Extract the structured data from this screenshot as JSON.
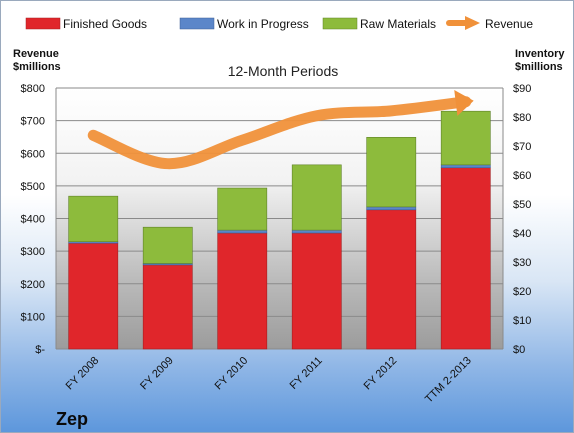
{
  "company": "Zep",
  "chart_data": {
    "type": "bar",
    "subtitle": "12-Month Periods",
    "categories": [
      "FY 2008",
      "FY 2009",
      "FY 2010",
      "FY 2011",
      "FY 2012",
      "TTM 2-2013"
    ],
    "stacked": true,
    "series": [
      {
        "name": "Finished Goods",
        "axis": "right",
        "color": "#e0262b",
        "values": [
          36.5,
          29.0,
          40.0,
          40.0,
          48.0,
          62.5
        ]
      },
      {
        "name": "Work in Progress",
        "axis": "right",
        "color": "#5b86c9",
        "values": [
          0.5,
          0.5,
          1.0,
          1.0,
          1.0,
          1.0
        ]
      },
      {
        "name": "Raw Materials",
        "axis": "right",
        "color": "#8dbb3c",
        "values": [
          15.7,
          12.5,
          14.5,
          22.5,
          24.0,
          18.5
        ]
      },
      {
        "name": "Revenue",
        "type": "line",
        "axis": "left",
        "color": "#f0913a",
        "values": [
          655,
          568,
          640,
          715,
          730,
          758
        ]
      }
    ],
    "y_left": {
      "label_lines": [
        "Revenue",
        "$millions"
      ],
      "range": [
        0,
        800
      ],
      "ticks": [
        0,
        100,
        200,
        300,
        400,
        500,
        600,
        700,
        800
      ],
      "tick_labels": [
        "$-",
        "$100",
        "$200",
        "$300",
        "$400",
        "$500",
        "$600",
        "$700",
        "$800"
      ]
    },
    "y_right": {
      "label_lines": [
        "Inventory",
        "$millions"
      ],
      "range": [
        0,
        90
      ],
      "ticks": [
        0,
        10,
        20,
        30,
        40,
        50,
        60,
        70,
        80,
        90
      ],
      "tick_labels": [
        "$0",
        "$10",
        "$20",
        "$30",
        "$40",
        "$50",
        "$60",
        "$70",
        "$80",
        "$90"
      ]
    },
    "grid": true,
    "legend_position": "top"
  }
}
